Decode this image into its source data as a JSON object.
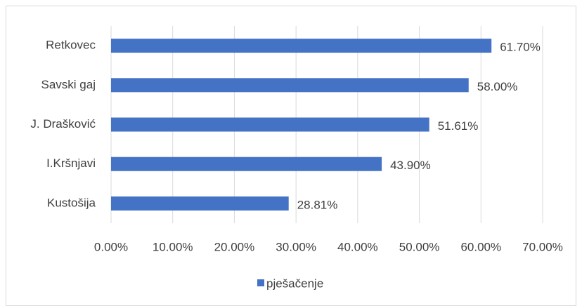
{
  "chart_data": {
    "type": "bar",
    "orientation": "horizontal",
    "categories": [
      "Retkovec",
      "Savski gaj",
      "J. Drašković",
      "I.Kršnjavi",
      "Kustošija"
    ],
    "series": [
      {
        "name": "pješačenje",
        "color": "#4472c4",
        "values": [
          61.7,
          58.0,
          51.61,
          43.9,
          28.81
        ],
        "value_labels": [
          "61.70%",
          "58.00%",
          "51.61%",
          "43.90%",
          "28.81%"
        ]
      }
    ],
    "xlim": [
      0,
      70
    ],
    "xticks": [
      {
        "value": 0,
        "label": "0.00%"
      },
      {
        "value": 10,
        "label": "10.00%"
      },
      {
        "value": 20,
        "label": "20.00%"
      },
      {
        "value": 30,
        "label": "30.00%"
      },
      {
        "value": 40,
        "label": "40.00%"
      },
      {
        "value": 50,
        "label": "50.00%"
      },
      {
        "value": 60,
        "label": "60.00%"
      },
      {
        "value": 70,
        "label": "70.00%"
      }
    ],
    "grid": true,
    "legend": "bottom"
  }
}
